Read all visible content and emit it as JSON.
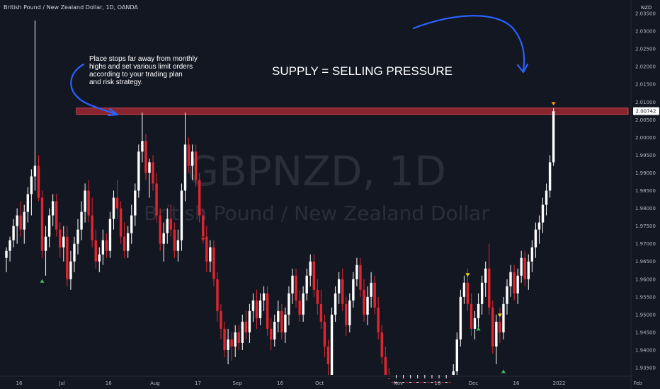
{
  "header": {
    "title": "British Pound / New Zealand Dollar, 1D, OANDA",
    "currency": "NZD"
  },
  "watermark": {
    "symbol": "GBPNZD, 1D",
    "name": "British Pound / New Zealand Dollar"
  },
  "annotations": {
    "note_lines": [
      "Place stops far away from monthly",
      " highs and set various limit orders",
      "according to your trading plan",
      "and risk strategy."
    ],
    "headline": "SUPPLY = SELLING PRESSURE"
  },
  "colors": {
    "background": "#131722",
    "bull": "#ffffff",
    "bear": "#e0252e",
    "zone_fill": "#b22833",
    "arrow": "#2962ff",
    "marker_up": "#3fbf5c",
    "marker_down_orange": "#ff9800",
    "marker_down_yellow": "#f5d40f",
    "marker_down_red": "#e0252e"
  },
  "price_label": "2.00742",
  "chart_data": {
    "type": "candlestick",
    "symbol": "GBPNZD",
    "timeframe": "1D",
    "y_axis": {
      "ylim": [
        1.93,
        2.036
      ],
      "ticks": [
        "1.93500",
        "1.94000",
        "1.94500",
        "1.95000",
        "1.95500",
        "1.96000",
        "1.96500",
        "1.97000",
        "1.97500",
        "1.98000",
        "1.98500",
        "1.99000",
        "1.99500",
        "2.00000",
        "2.00500",
        "2.01000",
        "2.01500",
        "2.02000",
        "2.02500",
        "2.03000",
        "2.03500"
      ]
    },
    "x_axis": {
      "ticks": [
        {
          "label": "16",
          "bar": 0
        },
        {
          "label": "Jul",
          "bar": 12
        },
        {
          "label": "16",
          "bar": 25
        },
        {
          "label": "Aug",
          "bar": 38
        },
        {
          "label": "17",
          "bar": 50
        },
        {
          "label": "Sep",
          "bar": 61
        },
        {
          "label": "16",
          "bar": 73
        },
        {
          "label": "Oct",
          "bar": 84
        },
        {
          "label": "Nov",
          "bar": 106
        },
        {
          "label": "16",
          "bar": 117
        },
        {
          "label": "Dec",
          "bar": 127
        },
        {
          "label": "16",
          "bar": 139
        },
        {
          "label": "2022",
          "bar": 151
        },
        {
          "label": "Feb",
          "bar": 173
        }
      ]
    },
    "supply_zone": {
      "low": 2.0065,
      "high": 2.0083
    },
    "last_price": 2.00742,
    "candles": [
      {
        "o": 1.966,
        "h": 1.969,
        "l": 1.962,
        "c": 1.968
      },
      {
        "o": 1.968,
        "h": 1.972,
        "l": 1.965,
        "c": 1.971
      },
      {
        "o": 1.971,
        "h": 1.977,
        "l": 1.969,
        "c": 1.975
      },
      {
        "o": 1.975,
        "h": 1.98,
        "l": 1.97,
        "c": 1.978
      },
      {
        "o": 1.978,
        "h": 1.982,
        "l": 1.972,
        "c": 1.974
      },
      {
        "o": 1.974,
        "h": 1.981,
        "l": 1.97,
        "c": 1.979
      },
      {
        "o": 1.979,
        "h": 1.986,
        "l": 1.976,
        "c": 1.984
      },
      {
        "o": 1.984,
        "h": 1.991,
        "l": 1.978,
        "c": 1.989
      },
      {
        "o": 1.989,
        "h": 2.033,
        "l": 1.985,
        "c": 1.992
      },
      {
        "o": 1.992,
        "h": 1.995,
        "l": 1.982,
        "c": 1.983
      },
      {
        "o": 1.983,
        "h": 1.985,
        "l": 1.966,
        "c": 1.968
      },
      {
        "o": 1.968,
        "h": 1.975,
        "l": 1.961,
        "c": 1.972
      },
      {
        "o": 1.972,
        "h": 1.98,
        "l": 1.969,
        "c": 1.978
      },
      {
        "o": 1.978,
        "h": 1.984,
        "l": 1.975,
        "c": 1.982
      },
      {
        "o": 1.982,
        "h": 1.984,
        "l": 1.972,
        "c": 1.974
      },
      {
        "o": 1.974,
        "h": 1.976,
        "l": 1.966,
        "c": 1.969
      },
      {
        "o": 1.969,
        "h": 1.975,
        "l": 1.965,
        "c": 1.972
      },
      {
        "o": 1.972,
        "h": 1.975,
        "l": 1.958,
        "c": 1.96
      },
      {
        "o": 1.96,
        "h": 1.968,
        "l": 1.957,
        "c": 1.965
      },
      {
        "o": 1.965,
        "h": 1.972,
        "l": 1.962,
        "c": 1.97
      },
      {
        "o": 1.97,
        "h": 1.977,
        "l": 1.967,
        "c": 1.974
      },
      {
        "o": 1.974,
        "h": 1.982,
        "l": 1.971,
        "c": 1.979
      },
      {
        "o": 1.979,
        "h": 1.987,
        "l": 1.976,
        "c": 1.985
      },
      {
        "o": 1.985,
        "h": 1.988,
        "l": 1.976,
        "c": 1.978
      },
      {
        "o": 1.978,
        "h": 1.983,
        "l": 1.969,
        "c": 1.971
      },
      {
        "o": 1.971,
        "h": 1.974,
        "l": 1.963,
        "c": 1.965
      },
      {
        "o": 1.965,
        "h": 1.969,
        "l": 1.962,
        "c": 1.967
      },
      {
        "o": 1.967,
        "h": 1.974,
        "l": 1.964,
        "c": 1.971
      },
      {
        "o": 1.971,
        "h": 1.973,
        "l": 1.966,
        "c": 1.968
      },
      {
        "o": 1.968,
        "h": 1.979,
        "l": 1.966,
        "c": 1.977
      },
      {
        "o": 1.977,
        "h": 1.985,
        "l": 1.974,
        "c": 1.983
      },
      {
        "o": 1.983,
        "h": 1.988,
        "l": 1.977,
        "c": 1.98
      },
      {
        "o": 1.98,
        "h": 1.982,
        "l": 1.97,
        "c": 1.972
      },
      {
        "o": 1.972,
        "h": 1.976,
        "l": 1.966,
        "c": 1.968
      },
      {
        "o": 1.968,
        "h": 1.975,
        "l": 1.966,
        "c": 1.973
      },
      {
        "o": 1.973,
        "h": 1.981,
        "l": 1.97,
        "c": 1.978
      },
      {
        "o": 1.978,
        "h": 1.987,
        "l": 1.975,
        "c": 1.985
      },
      {
        "o": 1.985,
        "h": 1.998,
        "l": 1.983,
        "c": 1.996
      },
      {
        "o": 1.996,
        "h": 2.007,
        "l": 1.993,
        "c": 1.999
      },
      {
        "o": 1.999,
        "h": 2.001,
        "l": 1.988,
        "c": 1.99
      },
      {
        "o": 1.99,
        "h": 1.994,
        "l": 1.983,
        "c": 1.993
      },
      {
        "o": 1.993,
        "h": 1.995,
        "l": 1.985,
        "c": 1.987
      },
      {
        "o": 1.987,
        "h": 1.99,
        "l": 1.976,
        "c": 1.978
      },
      {
        "o": 1.978,
        "h": 1.98,
        "l": 1.968,
        "c": 1.97
      },
      {
        "o": 1.97,
        "h": 1.976,
        "l": 1.965,
        "c": 1.973
      },
      {
        "o": 1.973,
        "h": 1.98,
        "l": 1.97,
        "c": 1.977
      },
      {
        "o": 1.977,
        "h": 1.981,
        "l": 1.972,
        "c": 1.974
      },
      {
        "o": 1.974,
        "h": 1.976,
        "l": 1.966,
        "c": 1.968
      },
      {
        "o": 1.968,
        "h": 1.974,
        "l": 1.965,
        "c": 1.971
      },
      {
        "o": 1.971,
        "h": 1.987,
        "l": 1.968,
        "c": 1.985
      },
      {
        "o": 1.985,
        "h": 2.007,
        "l": 1.982,
        "c": 1.998
      },
      {
        "o": 1.998,
        "h": 2.0,
        "l": 1.99,
        "c": 1.992
      },
      {
        "o": 1.992,
        "h": 1.998,
        "l": 1.988,
        "c": 1.996
      },
      {
        "o": 1.996,
        "h": 1.998,
        "l": 1.986,
        "c": 1.988
      },
      {
        "o": 1.988,
        "h": 1.99,
        "l": 1.976,
        "c": 1.978
      },
      {
        "o": 1.978,
        "h": 1.98,
        "l": 1.97,
        "c": 1.972
      },
      {
        "o": 1.972,
        "h": 1.975,
        "l": 1.962,
        "c": 1.965
      },
      {
        "o": 1.965,
        "h": 1.971,
        "l": 1.962,
        "c": 1.969
      },
      {
        "o": 1.969,
        "h": 1.971,
        "l": 1.958,
        "c": 1.96
      },
      {
        "o": 1.96,
        "h": 1.962,
        "l": 1.948,
        "c": 1.951
      },
      {
        "o": 1.951,
        "h": 1.953,
        "l": 1.943,
        "c": 1.946
      },
      {
        "o": 1.946,
        "h": 1.948,
        "l": 1.938,
        "c": 1.94
      },
      {
        "o": 1.94,
        "h": 1.946,
        "l": 1.936,
        "c": 1.943
      },
      {
        "o": 1.943,
        "h": 1.945,
        "l": 1.937,
        "c": 1.941
      },
      {
        "o": 1.941,
        "h": 1.947,
        "l": 1.938,
        "c": 1.945
      },
      {
        "o": 1.945,
        "h": 1.947,
        "l": 1.94,
        "c": 1.942
      },
      {
        "o": 1.942,
        "h": 1.95,
        "l": 1.94,
        "c": 1.948
      },
      {
        "o": 1.948,
        "h": 1.951,
        "l": 1.943,
        "c": 1.945
      },
      {
        "o": 1.945,
        "h": 1.953,
        "l": 1.942,
        "c": 1.951
      },
      {
        "o": 1.951,
        "h": 1.956,
        "l": 1.948,
        "c": 1.954
      },
      {
        "o": 1.954,
        "h": 1.957,
        "l": 1.946,
        "c": 1.949
      },
      {
        "o": 1.949,
        "h": 1.956,
        "l": 1.947,
        "c": 1.954
      },
      {
        "o": 1.954,
        "h": 1.958,
        "l": 1.951,
        "c": 1.956
      },
      {
        "o": 1.956,
        "h": 1.958,
        "l": 1.944,
        "c": 1.946
      },
      {
        "o": 1.946,
        "h": 1.949,
        "l": 1.94,
        "c": 1.943
      },
      {
        "o": 1.943,
        "h": 1.95,
        "l": 1.941,
        "c": 1.948
      },
      {
        "o": 1.948,
        "h": 1.954,
        "l": 1.945,
        "c": 1.951
      },
      {
        "o": 1.951,
        "h": 1.953,
        "l": 1.943,
        "c": 1.945
      },
      {
        "o": 1.945,
        "h": 1.952,
        "l": 1.942,
        "c": 1.95
      },
      {
        "o": 1.95,
        "h": 1.958,
        "l": 1.947,
        "c": 1.956
      },
      {
        "o": 1.956,
        "h": 1.963,
        "l": 1.953,
        "c": 1.961
      },
      {
        "o": 1.961,
        "h": 1.963,
        "l": 1.952,
        "c": 1.954
      },
      {
        "o": 1.954,
        "h": 1.957,
        "l": 1.948,
        "c": 1.95
      },
      {
        "o": 1.95,
        "h": 1.958,
        "l": 1.948,
        "c": 1.956
      },
      {
        "o": 1.956,
        "h": 1.963,
        "l": 1.954,
        "c": 1.961
      },
      {
        "o": 1.961,
        "h": 1.967,
        "l": 1.958,
        "c": 1.965
      },
      {
        "o": 1.965,
        "h": 1.967,
        "l": 1.955,
        "c": 1.957
      },
      {
        "o": 1.957,
        "h": 1.96,
        "l": 1.95,
        "c": 1.953
      },
      {
        "o": 1.953,
        "h": 1.957,
        "l": 1.946,
        "c": 1.948
      },
      {
        "o": 1.948,
        "h": 1.95,
        "l": 1.938,
        "c": 1.941
      },
      {
        "o": 1.941,
        "h": 1.943,
        "l": 1.933,
        "c": 1.936
      },
      {
        "o": 1.933,
        "h": 1.952,
        "l": 1.932,
        "c": 1.95
      },
      {
        "o": 1.95,
        "h": 1.958,
        "l": 1.948,
        "c": 1.956
      },
      {
        "o": 1.956,
        "h": 1.962,
        "l": 1.953,
        "c": 1.96
      },
      {
        "o": 1.96,
        "h": 1.963,
        "l": 1.951,
        "c": 1.953
      },
      {
        "o": 1.953,
        "h": 1.955,
        "l": 1.944,
        "c": 1.947
      },
      {
        "o": 1.947,
        "h": 1.956,
        "l": 1.945,
        "c": 1.954
      },
      {
        "o": 1.954,
        "h": 1.962,
        "l": 1.952,
        "c": 1.96
      },
      {
        "o": 1.96,
        "h": 1.966,
        "l": 1.958,
        "c": 1.964
      },
      {
        "o": 1.964,
        "h": 1.966,
        "l": 1.955,
        "c": 1.957
      },
      {
        "o": 1.957,
        "h": 1.96,
        "l": 1.948,
        "c": 1.95
      },
      {
        "o": 1.95,
        "h": 1.958,
        "l": 1.947,
        "c": 1.955
      },
      {
        "o": 1.955,
        "h": 1.962,
        "l": 1.952,
        "c": 1.959
      },
      {
        "o": 1.959,
        "h": 1.961,
        "l": 1.95,
        "c": 1.952
      },
      {
        "o": 1.952,
        "h": 1.955,
        "l": 1.943,
        "c": 1.945
      },
      {
        "o": 1.945,
        "h": 1.947,
        "l": 1.936,
        "c": 1.938
      },
      {
        "o": 1.938,
        "h": 1.941,
        "l": 1.93,
        "c": 1.932
      },
      {
        "o": 1.932,
        "h": 1.935,
        "l": 1.929,
        "c": 1.931
      },
      {
        "o": 1.931,
        "h": 1.933,
        "l": 1.929,
        "c": 1.93
      },
      {
        "o": 1.93,
        "h": 1.932,
        "l": 1.929,
        "c": 1.931
      },
      {
        "o": 1.931,
        "h": 1.933,
        "l": 1.929,
        "c": 1.93
      },
      {
        "o": 1.93,
        "h": 1.932,
        "l": 1.929,
        "c": 1.931
      },
      {
        "o": 1.931,
        "h": 1.933,
        "l": 1.929,
        "c": 1.93
      },
      {
        "o": 1.93,
        "h": 1.932,
        "l": 1.929,
        "c": 1.931
      },
      {
        "o": 1.931,
        "h": 1.933,
        "l": 1.929,
        "c": 1.93
      },
      {
        "o": 1.93,
        "h": 1.932,
        "l": 1.929,
        "c": 1.931
      },
      {
        "o": 1.931,
        "h": 1.933,
        "l": 1.929,
        "c": 1.93
      },
      {
        "o": 1.93,
        "h": 1.932,
        "l": 1.929,
        "c": 1.931
      },
      {
        "o": 1.931,
        "h": 1.933,
        "l": 1.929,
        "c": 1.93
      },
      {
        "o": 1.93,
        "h": 1.932,
        "l": 1.929,
        "c": 1.931
      },
      {
        "o": 1.931,
        "h": 1.933,
        "l": 1.929,
        "c": 1.93
      },
      {
        "o": 1.93,
        "h": 1.932,
        "l": 1.929,
        "c": 1.931
      },
      {
        "o": 1.931,
        "h": 1.933,
        "l": 1.929,
        "c": 1.93
      },
      {
        "o": 1.93,
        "h": 1.932,
        "l": 1.929,
        "c": 1.931
      },
      {
        "o": 1.931,
        "h": 1.933,
        "l": 1.929,
        "c": 1.93
      },
      {
        "o": 1.93,
        "h": 1.936,
        "l": 1.929,
        "c": 1.934
      },
      {
        "o": 1.934,
        "h": 1.945,
        "l": 1.933,
        "c": 1.943
      },
      {
        "o": 1.943,
        "h": 1.957,
        "l": 1.941,
        "c": 1.955
      },
      {
        "o": 1.955,
        "h": 1.961,
        "l": 1.953,
        "c": 1.959
      },
      {
        "o": 1.959,
        "h": 1.963,
        "l": 1.951,
        "c": 1.953
      },
      {
        "o": 1.953,
        "h": 1.956,
        "l": 1.944,
        "c": 1.946
      },
      {
        "o": 1.946,
        "h": 1.951,
        "l": 1.943,
        "c": 1.949
      },
      {
        "o": 1.949,
        "h": 1.956,
        "l": 1.946,
        "c": 1.953
      },
      {
        "o": 1.953,
        "h": 1.961,
        "l": 1.95,
        "c": 1.959
      },
      {
        "o": 1.959,
        "h": 1.965,
        "l": 1.955,
        "c": 1.963
      },
      {
        "o": 1.963,
        "h": 1.97,
        "l": 1.95,
        "c": 1.952
      },
      {
        "o": 1.952,
        "h": 1.954,
        "l": 1.939,
        "c": 1.941
      },
      {
        "o": 1.941,
        "h": 1.95,
        "l": 1.936,
        "c": 1.948
      },
      {
        "o": 1.948,
        "h": 1.952,
        "l": 1.942,
        "c": 1.945
      },
      {
        "o": 1.945,
        "h": 1.955,
        "l": 1.943,
        "c": 1.953
      },
      {
        "o": 1.953,
        "h": 1.96,
        "l": 1.95,
        "c": 1.958
      },
      {
        "o": 1.958,
        "h": 1.964,
        "l": 1.955,
        "c": 1.962
      },
      {
        "o": 1.962,
        "h": 1.964,
        "l": 1.954,
        "c": 1.956
      },
      {
        "o": 1.956,
        "h": 1.963,
        "l": 1.953,
        "c": 1.961
      },
      {
        "o": 1.961,
        "h": 1.968,
        "l": 1.959,
        "c": 1.966
      },
      {
        "o": 1.966,
        "h": 1.968,
        "l": 1.958,
        "c": 1.96
      },
      {
        "o": 1.96,
        "h": 1.967,
        "l": 1.957,
        "c": 1.965
      },
      {
        "o": 1.965,
        "h": 1.971,
        "l": 1.962,
        "c": 1.969
      },
      {
        "o": 1.969,
        "h": 1.976,
        "l": 1.966,
        "c": 1.974
      },
      {
        "o": 1.974,
        "h": 1.978,
        "l": 1.97,
        "c": 1.976
      },
      {
        "o": 1.976,
        "h": 1.983,
        "l": 1.973,
        "c": 1.981
      },
      {
        "o": 1.981,
        "h": 1.987,
        "l": 1.978,
        "c": 1.985
      },
      {
        "o": 1.985,
        "h": 1.995,
        "l": 1.983,
        "c": 1.993
      },
      {
        "o": 1.993,
        "h": 2.0083,
        "l": 1.992,
        "c": 2.00742
      }
    ],
    "signal_markers": [
      {
        "bar": 10,
        "dir": "up",
        "price": 1.9595
      },
      {
        "bar": 55,
        "dir": "down",
        "price": 1.9712
      },
      {
        "bar": 129,
        "dir": "down",
        "price": 1.9612
      },
      {
        "bar": 132,
        "dir": "up",
        "price": 1.946
      },
      {
        "bar": 138,
        "dir": "down",
        "price": 1.9498
      },
      {
        "bar": 139,
        "dir": "up",
        "price": 1.934
      },
      {
        "bar": 153,
        "dir": "down",
        "price": 2.0095
      }
    ]
  }
}
